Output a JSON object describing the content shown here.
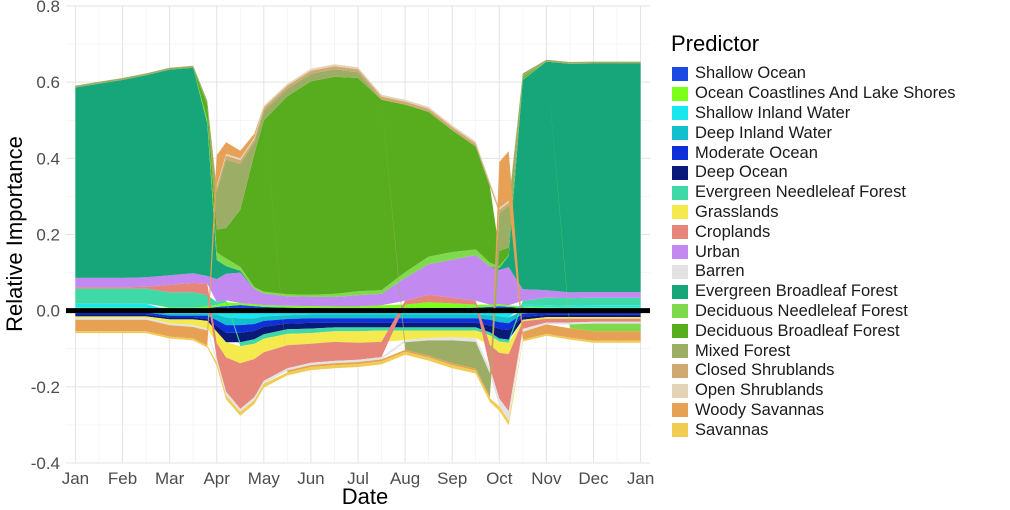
{
  "chart_data": {
    "type": "area",
    "title": "",
    "xlabel": "Date",
    "ylabel": "Relative Importance",
    "ylim": [
      -0.4,
      0.8
    ],
    "y_ticks": [
      "-0.4",
      "-0.2",
      "0.0",
      "0.2",
      "0.4",
      "0.6",
      "0.8"
    ],
    "x_ticks": [
      "Jan",
      "Feb",
      "Mar",
      "Apr",
      "May",
      "Jun",
      "Jul",
      "Aug",
      "Sep",
      "Oct",
      "Nov",
      "Dec",
      "Jan"
    ],
    "grid": true,
    "legend_position": "right",
    "zero_line": true,
    "x": [
      1.0,
      1.5,
      2.0,
      2.5,
      3.0,
      3.5,
      3.8,
      4.0,
      4.2,
      4.5,
      4.8,
      5.0,
      5.5,
      6.0,
      6.5,
      7.0,
      7.5,
      8.0,
      8.5,
      9.0,
      9.5,
      9.8,
      10.0,
      10.2,
      10.5,
      11.0,
      11.5,
      12.0,
      12.5,
      13.0
    ],
    "legend_title": "Predictor",
    "series": [
      {
        "name": "Shallow Ocean",
        "color": "#1a49e6",
        "values": [
          0.005,
          0.005,
          0.005,
          0.005,
          0.005,
          0.005,
          0.006,
          0.01,
          0.012,
          0.015,
          0.012,
          0.01,
          0.008,
          0.007,
          0.006,
          0.006,
          0.006,
          0.006,
          0.007,
          0.007,
          0.008,
          0.01,
          0.012,
          0.01,
          0.008,
          0.006,
          0.005,
          0.005,
          0.005,
          0.005
        ]
      },
      {
        "name": "Ocean Coastlines And Lake Shores",
        "color": "#7cff1a",
        "values": [
          0.003,
          0.003,
          0.003,
          0.003,
          0.003,
          0.003,
          0.005,
          0.005,
          0.01,
          0.005,
          0.005,
          0.005,
          0.005,
          0.005,
          0.005,
          0.005,
          0.008,
          0.01,
          0.015,
          0.012,
          0.008,
          0.006,
          0.005,
          0.004,
          0.003,
          0.003,
          0.003,
          0.003,
          0.003,
          0.003
        ]
      },
      {
        "name": "Shallow Inland Water",
        "color": "#1ae6f0",
        "values": [
          0.01,
          0.01,
          0.01,
          0.01,
          -0.008,
          -0.008,
          -0.008,
          -0.01,
          -0.018,
          -0.02,
          -0.02,
          -0.015,
          -0.012,
          -0.01,
          -0.01,
          -0.01,
          -0.01,
          -0.01,
          -0.01,
          -0.01,
          -0.01,
          -0.012,
          -0.015,
          -0.018,
          0.005,
          0.005,
          0.005,
          0.006,
          0.006,
          0.006
        ]
      },
      {
        "name": "Deep Inland Water",
        "color": "#12bfcc",
        "values": [
          -0.005,
          -0.005,
          -0.005,
          -0.005,
          -0.005,
          -0.005,
          -0.005,
          -0.015,
          -0.02,
          -0.018,
          -0.015,
          -0.012,
          -0.01,
          -0.01,
          -0.01,
          -0.01,
          -0.01,
          -0.01,
          -0.01,
          -0.01,
          -0.01,
          -0.012,
          -0.015,
          -0.015,
          -0.008,
          -0.005,
          -0.005,
          -0.005,
          -0.005,
          -0.005
        ]
      },
      {
        "name": "Moderate Ocean",
        "color": "#0f2fd9",
        "values": [
          -0.005,
          -0.005,
          -0.005,
          -0.005,
          -0.005,
          -0.005,
          -0.008,
          -0.015,
          -0.02,
          -0.02,
          -0.018,
          -0.015,
          -0.012,
          -0.012,
          -0.012,
          -0.012,
          -0.012,
          -0.012,
          -0.012,
          -0.012,
          -0.012,
          -0.015,
          -0.018,
          -0.018,
          -0.008,
          -0.006,
          -0.006,
          -0.006,
          -0.006,
          -0.006
        ]
      },
      {
        "name": "Deep Ocean",
        "color": "#0a1a78",
        "values": [
          -0.005,
          -0.005,
          -0.005,
          -0.005,
          -0.005,
          -0.005,
          -0.006,
          -0.015,
          -0.025,
          -0.025,
          -0.022,
          -0.02,
          -0.015,
          -0.015,
          -0.012,
          -0.012,
          -0.012,
          -0.012,
          -0.012,
          -0.012,
          -0.012,
          -0.018,
          -0.025,
          -0.025,
          -0.008,
          -0.006,
          -0.006,
          -0.006,
          -0.006,
          -0.006
        ]
      },
      {
        "name": "Evergreen Needleleaf Forest",
        "color": "#3ed9a6",
        "values": [
          0.04,
          0.04,
          0.04,
          0.04,
          0.04,
          0.04,
          0.03,
          0.008,
          0.005,
          -0.01,
          -0.012,
          -0.012,
          -0.012,
          -0.012,
          -0.01,
          -0.01,
          -0.008,
          -0.008,
          -0.008,
          -0.008,
          -0.008,
          -0.008,
          -0.008,
          -0.008,
          0.01,
          0.02,
          0.02,
          0.02,
          0.02,
          0.02
        ]
      },
      {
        "name": "Grasslands",
        "color": "#f5ea4d",
        "values": [
          -0.004,
          -0.004,
          -0.004,
          -0.004,
          -0.01,
          -0.015,
          -0.02,
          -0.03,
          -0.04,
          -0.045,
          -0.04,
          -0.035,
          -0.03,
          -0.028,
          -0.028,
          -0.03,
          -0.03,
          -0.025,
          -0.02,
          -0.018,
          -0.02,
          -0.025,
          -0.03,
          -0.03,
          -0.004,
          -0.004,
          -0.004,
          -0.004,
          -0.004,
          -0.004
        ]
      },
      {
        "name": "Croplands",
        "color": "#e6857a",
        "values": [
          0.003,
          0.003,
          0.003,
          0.005,
          0.02,
          0.025,
          0.03,
          -0.04,
          -0.09,
          -0.12,
          -0.1,
          -0.075,
          -0.06,
          -0.05,
          -0.05,
          -0.045,
          -0.04,
          0.01,
          0.02,
          0.015,
          0.01,
          -0.06,
          -0.12,
          -0.15,
          -0.02,
          -0.01,
          -0.01,
          -0.008,
          -0.008,
          -0.008
        ]
      },
      {
        "name": "Urban",
        "color": "#c28af0",
        "values": [
          0.025,
          0.025,
          0.025,
          0.025,
          0.025,
          0.025,
          0.02,
          0.06,
          0.07,
          0.08,
          0.04,
          0.03,
          0.025,
          0.025,
          0.025,
          0.03,
          0.03,
          0.06,
          0.08,
          0.1,
          0.12,
          0.1,
          0.09,
          0.1,
          0.03,
          0.02,
          0.015,
          0.015,
          0.015,
          0.015
        ]
      },
      {
        "name": "Barren",
        "color": "#e3e3e3",
        "values": [
          -0.005,
          -0.005,
          -0.005,
          -0.005,
          -0.005,
          -0.005,
          -0.005,
          -0.01,
          -0.01,
          -0.008,
          -0.008,
          -0.008,
          -0.006,
          -0.006,
          -0.006,
          -0.006,
          -0.006,
          -0.006,
          -0.006,
          -0.008,
          -0.01,
          -0.015,
          -0.02,
          -0.025,
          -0.008,
          -0.005,
          -0.005,
          -0.005,
          -0.005,
          -0.005
        ]
      },
      {
        "name": "Evergreen Broadleaf Forest",
        "color": "#17a67a",
        "values": [
          0.5,
          0.51,
          0.52,
          0.53,
          0.54,
          0.54,
          0.4,
          0.05,
          0.02,
          0.005,
          0.0,
          0.0,
          0.0,
          0.0,
          0.0,
          0.0,
          0.0,
          0.0,
          0.0,
          0.0,
          0.0,
          0.0,
          0.005,
          0.03,
          0.55,
          0.6,
          0.6,
          0.6,
          0.6,
          0.6
        ]
      },
      {
        "name": "Deciduous Needleleaf Forest",
        "color": "#7fd94d",
        "values": [
          0.0,
          0.0,
          0.0,
          0.0,
          0.0,
          0.0,
          0.01,
          0.02,
          0.02,
          0.01,
          0.005,
          0.005,
          0.005,
          0.005,
          0.008,
          0.01,
          0.01,
          0.015,
          0.02,
          0.02,
          0.015,
          0.01,
          0.005,
          0.002,
          0.002,
          0.0,
          -0.01,
          -0.02,
          -0.02,
          -0.02
        ]
      },
      {
        "name": "Deciduous Broadleaf Forest",
        "color": "#58ad1f",
        "values": [
          0.0,
          0.0,
          0.0,
          0.0,
          0.0,
          0.0,
          0.04,
          0.06,
          0.08,
          0.15,
          0.35,
          0.45,
          0.52,
          0.56,
          0.57,
          0.56,
          0.5,
          0.44,
          0.38,
          0.32,
          0.27,
          0.2,
          0.04,
          0.02,
          0.005,
          0.0,
          0.0,
          0.0,
          0.0,
          0.0
        ]
      },
      {
        "name": "Mixed Forest",
        "color": "#9cad66",
        "values": [
          0.005,
          0.005,
          0.005,
          0.005,
          0.005,
          0.005,
          0.01,
          0.1,
          0.18,
          0.12,
          0.03,
          0.025,
          0.02,
          0.02,
          0.02,
          0.015,
          0.0,
          -0.02,
          -0.04,
          -0.06,
          -0.07,
          -0.06,
          0.1,
          0.11,
          0.01,
          0.005,
          0.005,
          0.005,
          0.005,
          0.005
        ]
      },
      {
        "name": "Closed Shrublands",
        "color": "#cfa872",
        "values": [
          0.0,
          0.0,
          0.0,
          0.0,
          0.0,
          0.0,
          0.0,
          0.01,
          0.01,
          0.01,
          0.008,
          0.008,
          0.008,
          0.008,
          0.008,
          0.008,
          0.008,
          0.008,
          0.008,
          0.008,
          0.008,
          0.008,
          0.008,
          0.008,
          0.0,
          0.0,
          0.0,
          0.0,
          0.0,
          0.0
        ]
      },
      {
        "name": "Open Shrublands",
        "color": "#e3d4b8",
        "values": [
          0.0,
          0.0,
          0.0,
          0.0,
          0.0,
          0.0,
          0.0,
          0.005,
          0.005,
          0.005,
          0.005,
          0.005,
          0.005,
          0.005,
          0.005,
          0.005,
          0.005,
          0.005,
          0.005,
          0.005,
          0.005,
          0.005,
          0.005,
          0.005,
          0.0,
          0.0,
          0.0,
          0.0,
          0.0,
          0.0
        ]
      },
      {
        "name": "Woody Savannas",
        "color": "#e6a154",
        "values": [
          -0.03,
          -0.03,
          -0.03,
          -0.03,
          -0.03,
          -0.03,
          -0.04,
          0.08,
          0.03,
          0.02,
          0.01,
          0.0,
          -0.005,
          -0.005,
          -0.005,
          -0.005,
          -0.005,
          -0.005,
          -0.005,
          -0.005,
          -0.005,
          -0.005,
          0.12,
          0.13,
          -0.02,
          -0.025,
          -0.025,
          -0.025,
          -0.025,
          -0.025
        ]
      },
      {
        "name": "Savannas",
        "color": "#f0cc52",
        "values": [
          -0.005,
          -0.005,
          -0.005,
          -0.005,
          -0.005,
          -0.005,
          -0.005,
          -0.01,
          -0.01,
          -0.01,
          -0.01,
          -0.01,
          -0.008,
          -0.008,
          -0.008,
          -0.008,
          -0.008,
          -0.008,
          -0.008,
          -0.008,
          -0.008,
          -0.01,
          -0.012,
          -0.012,
          -0.005,
          -0.005,
          -0.005,
          -0.005,
          -0.005,
          -0.005
        ]
      }
    ]
  }
}
